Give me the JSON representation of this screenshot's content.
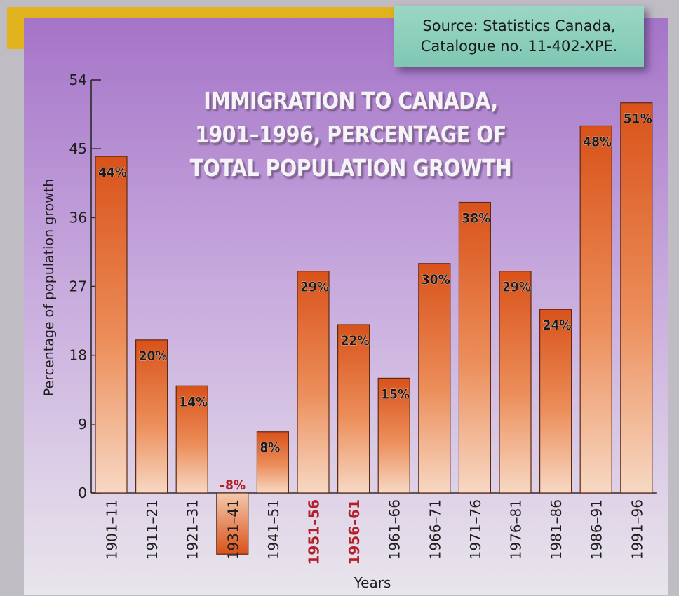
{
  "source": {
    "line1": "Source: Statistics Canada,",
    "line2": "Catalogue no. 11-402-XPE."
  },
  "colors": {
    "bar_top": "#d9521a",
    "bar_bottom": "#f7d8c4",
    "highlight_label": "#b3202a",
    "background_top": "#a574c8",
    "background_bottom": "#e9e6ec"
  },
  "chart_data": {
    "type": "bar",
    "title": [
      "IMMIGRATION TO CANADA,",
      "1901–1996, PERCENTAGE OF",
      "TOTAL POPULATION GROWTH"
    ],
    "xlabel": "Years",
    "ylabel": "Percentage of population growth",
    "ylim": [
      0,
      54
    ],
    "yticks": [
      0,
      9,
      18,
      27,
      36,
      45,
      54
    ],
    "grid": false,
    "categories": [
      "1901–11",
      "1911–21",
      "1921–31",
      "1931–41",
      "1941–51",
      "1951–56",
      "1956–61",
      "1961–66",
      "1966–71",
      "1971–76",
      "1976–81",
      "1981–86",
      "1986–91",
      "1991–96"
    ],
    "values": [
      44,
      20,
      14,
      -8,
      8,
      29,
      22,
      15,
      30,
      38,
      29,
      24,
      48,
      51
    ],
    "data_labels": [
      "44%",
      "20%",
      "14%",
      "–8%",
      "8%",
      "29%",
      "22%",
      "15%",
      "30%",
      "38%",
      "29%",
      "24%",
      "48%",
      "51%"
    ],
    "highlighted_categories": [
      "1951–56",
      "1956–61"
    ]
  }
}
